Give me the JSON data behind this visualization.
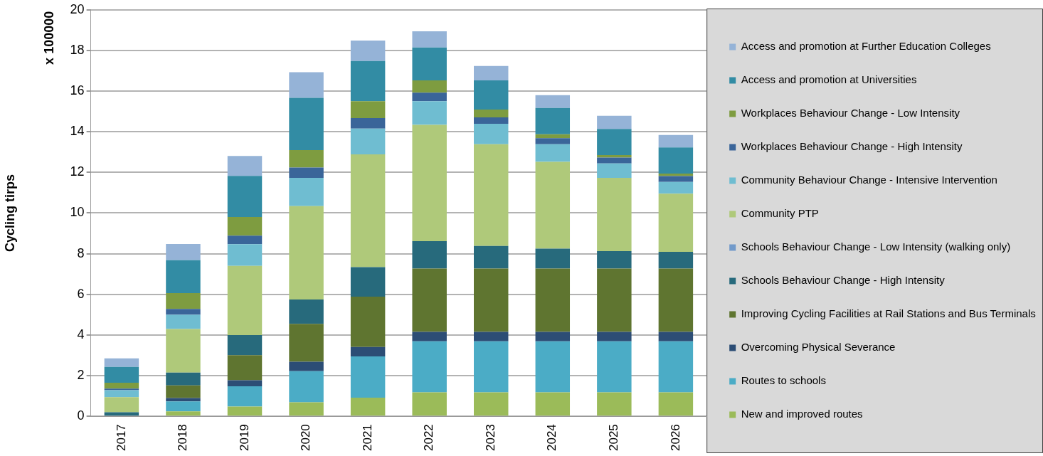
{
  "chart_data": {
    "type": "bar",
    "stacked": true,
    "ylabel": "Cycling tirps",
    "annotations": [
      "x 100000"
    ],
    "categories": [
      "2017",
      "2018",
      "2019",
      "2020",
      "2021",
      "2022",
      "2023",
      "2024",
      "2025",
      "2026"
    ],
    "ylim": [
      0,
      20
    ],
    "yticks": [
      0,
      2,
      4,
      6,
      8,
      10,
      12,
      14,
      16,
      18,
      20
    ],
    "grid": "y",
    "legend": "right",
    "series": [
      {
        "name": "New and improved routes",
        "color": "#9bbb59",
        "values": [
          0,
          0.24,
          0.48,
          0.69,
          0.92,
          1.18,
          1.18,
          1.18,
          1.18,
          1.18
        ]
      },
      {
        "name": "Routes to schools",
        "color": "#4bacc6",
        "values": [
          0,
          0.49,
          1.0,
          1.53,
          2.03,
          2.51,
          2.51,
          2.51,
          2.51,
          2.51
        ]
      },
      {
        "name": "Overcoming Physical Severance",
        "color": "#2c4d75",
        "values": [
          0,
          0.17,
          0.29,
          0.46,
          0.46,
          0.46,
          0.46,
          0.46,
          0.46,
          0.46
        ]
      },
      {
        "name": "Improving Cycling Facilities at Rail Stations and Bus Terminals",
        "color": "#5f7530",
        "values": [
          0,
          0.62,
          1.24,
          1.87,
          2.48,
          3.12,
          3.12,
          3.12,
          3.12,
          3.12
        ]
      },
      {
        "name": "Schools Behaviour Change - High Intensity",
        "color": "#276a7c",
        "values": [
          0.2,
          0.63,
          0.99,
          1.2,
          1.45,
          1.35,
          1.11,
          0.98,
          0.86,
          0.82
        ]
      },
      {
        "name": "Schools Behaviour Change - Low Intensity (walking only)",
        "color": "#729aca",
        "values": [
          0,
          0,
          0,
          0,
          0,
          0,
          0,
          0,
          0,
          0
        ]
      },
      {
        "name": "Community PTP",
        "color": "#afc97a",
        "values": [
          0.74,
          2.14,
          3.4,
          4.59,
          5.55,
          5.72,
          5.01,
          4.27,
          3.6,
          2.86
        ]
      },
      {
        "name": "Community Behaviour Change - Intensive Intervention",
        "color": "#6fbdd1",
        "values": [
          0.34,
          0.7,
          1.07,
          1.39,
          1.27,
          1.16,
          1.0,
          0.87,
          0.71,
          0.58
        ]
      },
      {
        "name": "Workplaces Behaviour Change - High Intensity",
        "color": "#3a6599",
        "values": [
          0.08,
          0.29,
          0.42,
          0.51,
          0.51,
          0.42,
          0.32,
          0.29,
          0.29,
          0.29
        ]
      },
      {
        "name": "Workplaces Behaviour Change - Low Intensity",
        "color": "#7e9c40",
        "values": [
          0.29,
          0.78,
          0.92,
          0.86,
          0.83,
          0.61,
          0.38,
          0.2,
          0.12,
          0.12
        ]
      },
      {
        "name": "Access and promotion at Universities",
        "color": "#328ca4",
        "values": [
          0.78,
          1.62,
          2.02,
          2.57,
          1.98,
          1.62,
          1.44,
          1.29,
          1.29,
          1.29
        ]
      },
      {
        "name": "Access and promotion at Further Education Colleges",
        "color": "#95b3d7",
        "values": [
          0.42,
          0.8,
          0.98,
          1.26,
          1.01,
          0.79,
          0.71,
          0.63,
          0.65,
          0.61
        ]
      }
    ]
  }
}
